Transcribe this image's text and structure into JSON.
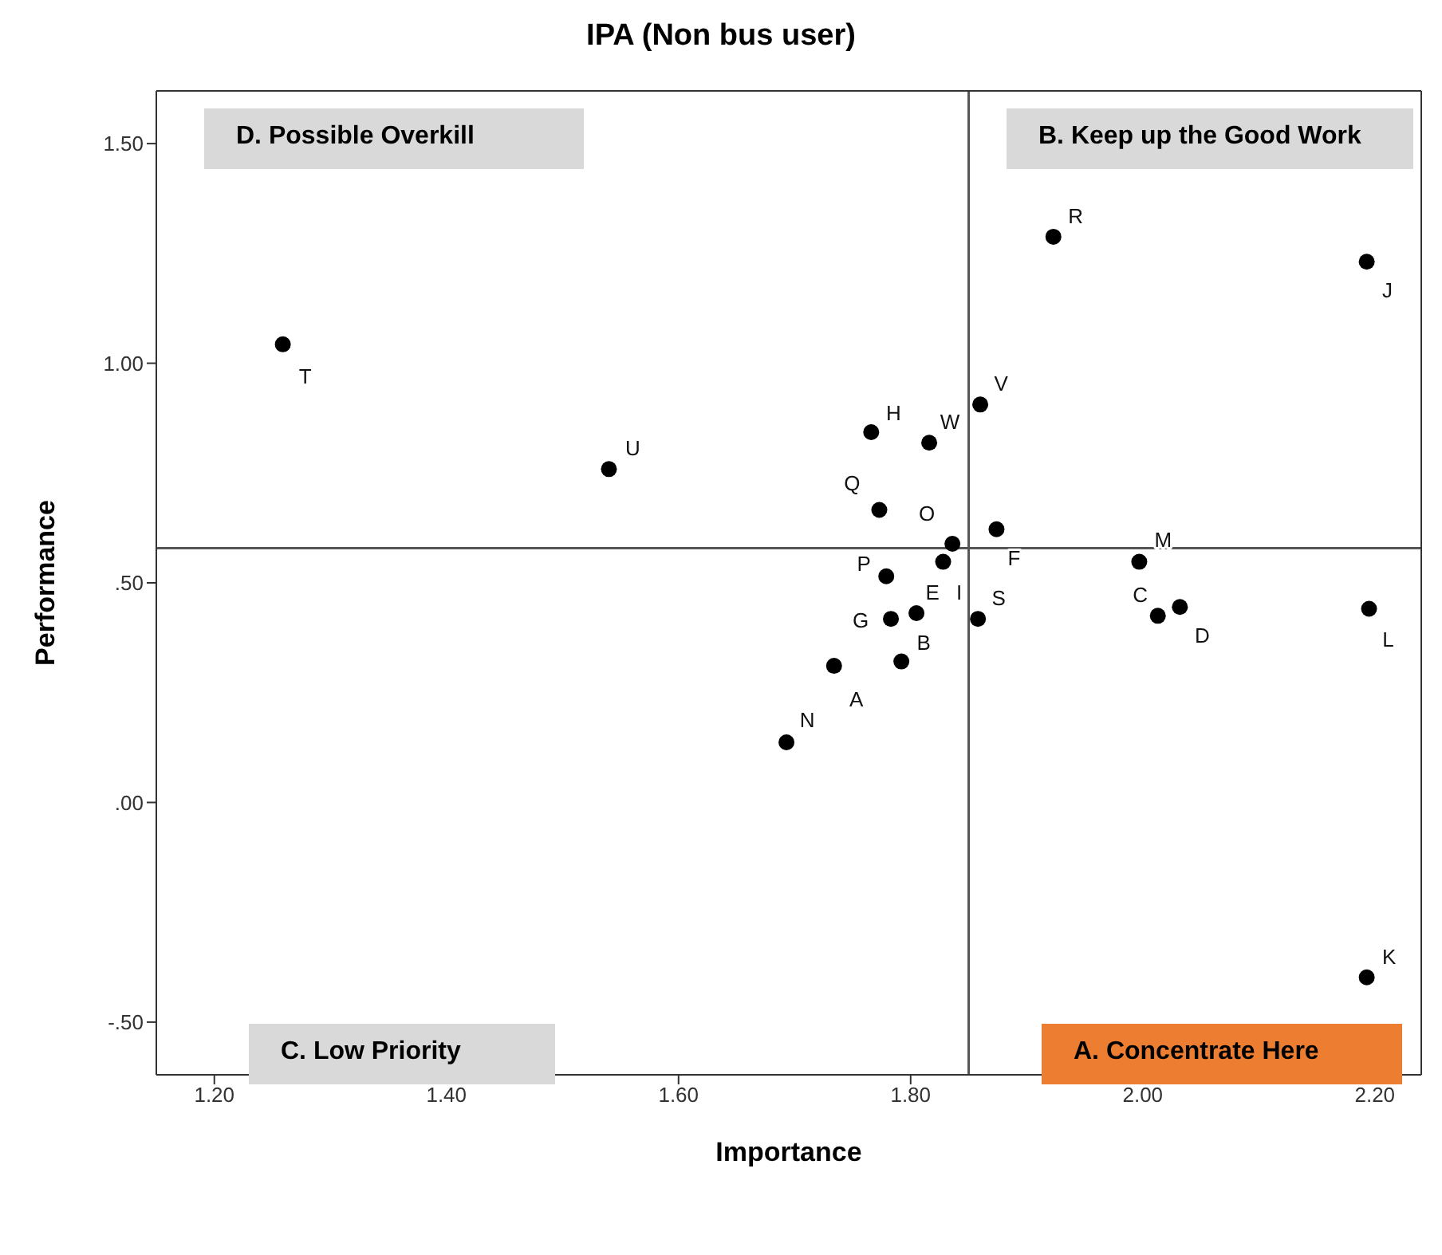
{
  "chart_data": {
    "type": "scatter",
    "title": "IPA (Non bus user)",
    "xlabel": "Importance",
    "ylabel": "Performance",
    "xlim": [
      1.15,
      2.24
    ],
    "ylim": [
      -0.62,
      1.62
    ],
    "xticks": [
      {
        "value": 1.2,
        "label": "1.20"
      },
      {
        "value": 1.4,
        "label": "1.40"
      },
      {
        "value": 1.6,
        "label": "1.60"
      },
      {
        "value": 1.8,
        "label": "1.80"
      },
      {
        "value": 2.0,
        "label": "2.00"
      },
      {
        "value": 2.2,
        "label": "2.20"
      }
    ],
    "yticks": [
      {
        "value": -0.5,
        "label": "-.50"
      },
      {
        "value": 0,
        "label": ".00"
      },
      {
        "value": 0.5,
        "label": ".50"
      },
      {
        "value": 1.0,
        "label": "1.00"
      },
      {
        "value": 1.5,
        "label": "1.50"
      }
    ],
    "grid": false,
    "legend": false,
    "marker": "circle",
    "ref_lines": [
      {
        "axis": "x",
        "value": 1.85,
        "color": "#555555"
      },
      {
        "axis": "y",
        "value": 0.579,
        "color": "#555555"
      }
    ],
    "annotations": [
      "D. Possible Overkill",
      "B. Keep up the Good Work",
      "C. Low Priority",
      "A. Concentrate Here"
    ],
    "series": [
      {
        "name": "A",
        "color": "#000000",
        "x": [
          1.734
        ],
        "values": [
          0.311
        ]
      },
      {
        "name": "B",
        "color": "#000000",
        "x": [
          1.792
        ],
        "values": [
          0.321
        ]
      },
      {
        "name": "C",
        "color": "#000000",
        "x": [
          2.013
        ],
        "values": [
          0.425
        ]
      },
      {
        "name": "D",
        "color": "#000000",
        "x": [
          2.032
        ],
        "values": [
          0.445
        ]
      },
      {
        "name": "E",
        "color": "#000000",
        "x": [
          1.805
        ],
        "values": [
          0.431
        ]
      },
      {
        "name": "F",
        "color": "#000000",
        "x": [
          1.874
        ],
        "values": [
          0.622
        ]
      },
      {
        "name": "G",
        "color": "#000000",
        "x": [
          1.783
        ],
        "values": [
          0.418
        ]
      },
      {
        "name": "H",
        "color": "#000000",
        "x": [
          1.766
        ],
        "values": [
          0.843
        ]
      },
      {
        "name": "I",
        "color": "#000000",
        "x": [
          1.828
        ],
        "values": [
          0.548
        ]
      },
      {
        "name": "J",
        "color": "#000000",
        "x": [
          2.193
        ],
        "values": [
          1.231
        ]
      },
      {
        "name": "K",
        "color": "#000000",
        "x": [
          2.193
        ],
        "values": [
          -0.398
        ]
      },
      {
        "name": "L",
        "color": "#000000",
        "x": [
          2.195
        ],
        "values": [
          0.441
        ]
      },
      {
        "name": "M",
        "color": "#000000",
        "x": [
          1.997
        ],
        "values": [
          0.548
        ]
      },
      {
        "name": "N",
        "color": "#000000",
        "x": [
          1.693
        ],
        "values": [
          0.137
        ]
      },
      {
        "name": "O",
        "color": "#000000",
        "x": [
          1.836
        ],
        "values": [
          0.589
        ]
      },
      {
        "name": "P",
        "color": "#000000",
        "x": [
          1.779
        ],
        "values": [
          0.515
        ]
      },
      {
        "name": "Q",
        "color": "#000000",
        "x": [
          1.773
        ],
        "values": [
          0.666
        ]
      },
      {
        "name": "R",
        "color": "#000000",
        "x": [
          1.923
        ],
        "values": [
          1.288
        ]
      },
      {
        "name": "S",
        "color": "#000000",
        "x": [
          1.858
        ],
        "values": [
          0.418
        ]
      },
      {
        "name": "T",
        "color": "#000000",
        "x": [
          1.259
        ],
        "values": [
          1.043
        ]
      },
      {
        "name": "U",
        "color": "#000000",
        "x": [
          1.54
        ],
        "values": [
          0.759
        ]
      },
      {
        "name": "V",
        "color": "#000000",
        "x": [
          1.86
        ],
        "values": [
          0.906
        ]
      },
      {
        "name": "W",
        "color": "#000000",
        "x": [
          1.816
        ],
        "values": [
          0.819
        ]
      }
    ]
  }
}
